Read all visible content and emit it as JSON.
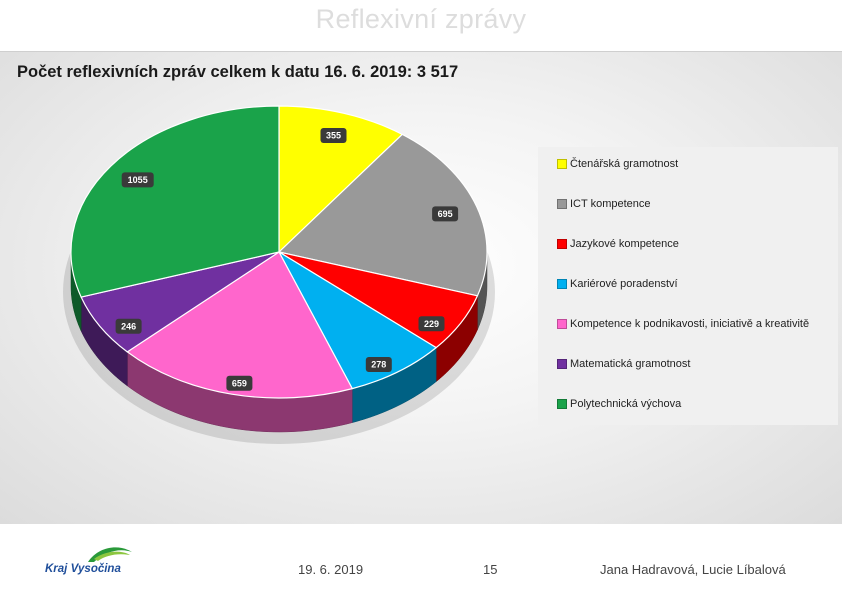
{
  "slide": {
    "title": "Reflexivní zprávy"
  },
  "chart_data": {
    "type": "pie",
    "title": "Počet reflexivních zpráv celkem k datu 16. 6. 2019: 3 517",
    "categories": [
      "Čtenářská gramotnost",
      "ICT kompetence",
      "Jazykové kompetence",
      "Kariérové poradenství",
      "Kompetence k podnikavosti, iniciativě a kreativitě",
      "Matematická gramotnost",
      "Polytechnická výchova"
    ],
    "values": [
      355,
      695,
      229,
      278,
      659,
      246,
      1055
    ],
    "colors": [
      "#ffff00",
      "#999999",
      "#ff0000",
      "#00b0f0",
      "#ff66cc",
      "#7030a0",
      "#1aa34a"
    ],
    "legend_position": "right",
    "style": "3d-pie"
  },
  "footer": {
    "logo_text": "Kraj Vysočina",
    "date": "19. 6. 2019",
    "page_number": "15",
    "authors": "Jana Hadravová, Lucie Líbalová"
  }
}
